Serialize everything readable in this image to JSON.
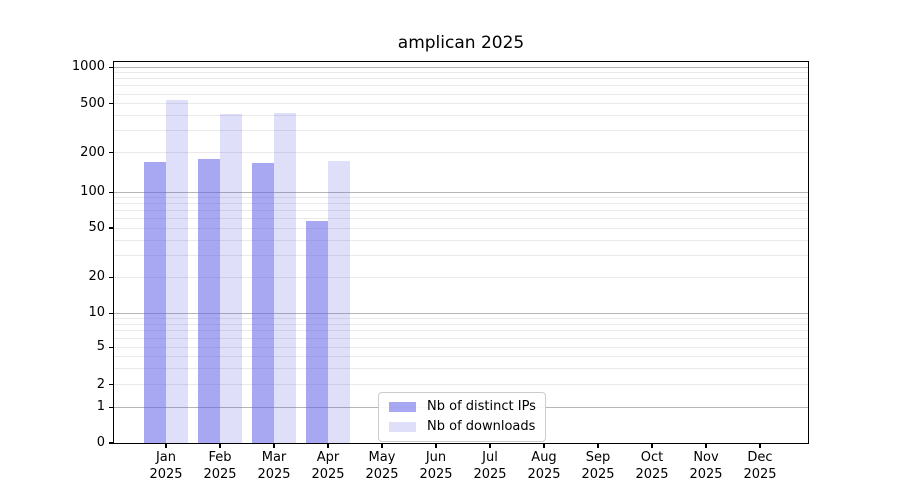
{
  "chart_data": {
    "type": "bar",
    "title": "amplican 2025",
    "year": "2025",
    "months": [
      "Jan",
      "Feb",
      "Mar",
      "Apr",
      "May",
      "Jun",
      "Jul",
      "Aug",
      "Sep",
      "Oct",
      "Nov",
      "Dec"
    ],
    "series": [
      {
        "name": "Nb of distinct IPs",
        "color": "rgba(95,95,232,0.55)",
        "values": [
          171,
          180,
          168,
          57,
          null,
          null,
          null,
          null,
          null,
          null,
          null,
          null
        ]
      },
      {
        "name": "Nb of downloads",
        "color": "rgba(95,95,232,0.20)",
        "values": [
          540,
          410,
          422,
          173,
          null,
          null,
          null,
          null,
          null,
          null,
          null,
          null
        ]
      }
    ],
    "y_ticks": [
      0,
      1,
      2,
      5,
      10,
      20,
      50,
      100,
      200,
      500,
      1000
    ],
    "y_axis_scale": "log-like with zero baseline",
    "ylim_top_value": 1120,
    "grid": "on",
    "legend_position": "inside-bottom-center",
    "frame_color": "#000000",
    "major_grid_color": "#b5b5b5",
    "minor_grid_color": "#e9e9e9"
  }
}
